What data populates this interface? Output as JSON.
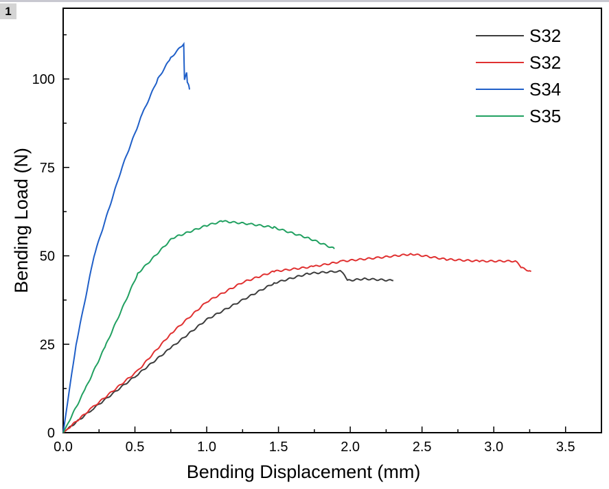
{
  "badge": "1",
  "chart_data": {
    "type": "line",
    "title": "",
    "xlabel": "Bending Displacement (mm)",
    "ylabel": "Bending Load (N)",
    "xlim": [
      0,
      3.75
    ],
    "ylim": [
      0,
      120
    ],
    "xticks": [
      "0.0",
      "0.5",
      "1.0",
      "1.5",
      "2.0",
      "2.5",
      "3.0",
      "3.5"
    ],
    "xtick_values": [
      0,
      0.5,
      1.0,
      1.5,
      2.0,
      2.5,
      3.0,
      3.5
    ],
    "yticks": [
      "0",
      "25",
      "50",
      "75",
      "100"
    ],
    "ytick_values": [
      0,
      25,
      50,
      75,
      100
    ],
    "grid": false,
    "legend_position": "top-right",
    "series": [
      {
        "name": "S32",
        "color": "#3c3c3c",
        "x": [
          0,
          0.2,
          0.52,
          0.75,
          1.0,
          1.25,
          1.47,
          1.71,
          1.9,
          1.94,
          1.98,
          2.1,
          2.3
        ],
        "y": [
          0,
          6.5,
          16.5,
          24,
          32,
          37.5,
          42.3,
          45,
          45.6,
          45.6,
          43,
          43.5,
          43
        ]
      },
      {
        "name": "S32",
        "color": "#e03030",
        "x": [
          0,
          0.2,
          0.52,
          0.75,
          1.0,
          1.25,
          1.47,
          1.75,
          1.95,
          2.2,
          2.43,
          2.67,
          2.9,
          3.15,
          3.2,
          3.26
        ],
        "y": [
          0,
          7,
          17.5,
          28,
          37,
          42.5,
          45.6,
          47,
          48.5,
          49.5,
          50.5,
          49,
          48.5,
          48.5,
          46.5,
          45.6
        ]
      },
      {
        "name": "S34",
        "color": "#1f5fc8",
        "x": [
          0,
          0.09,
          0.215,
          0.41,
          0.55,
          0.66,
          0.75,
          0.84,
          0.845,
          0.86,
          0.865,
          0.875,
          0.88
        ],
        "y": [
          0,
          25,
          50,
          75,
          90,
          100,
          106,
          110,
          100,
          102,
          99,
          98,
          97
        ]
      },
      {
        "name": "S35",
        "color": "#20a060",
        "x": [
          0,
          0.15,
          0.3,
          0.52,
          0.76,
          1.0,
          1.11,
          1.3,
          1.47,
          1.71,
          1.89
        ],
        "y": [
          0,
          12,
          25,
          45,
          55,
          58.6,
          59.8,
          59,
          58,
          55,
          52
        ]
      }
    ]
  }
}
